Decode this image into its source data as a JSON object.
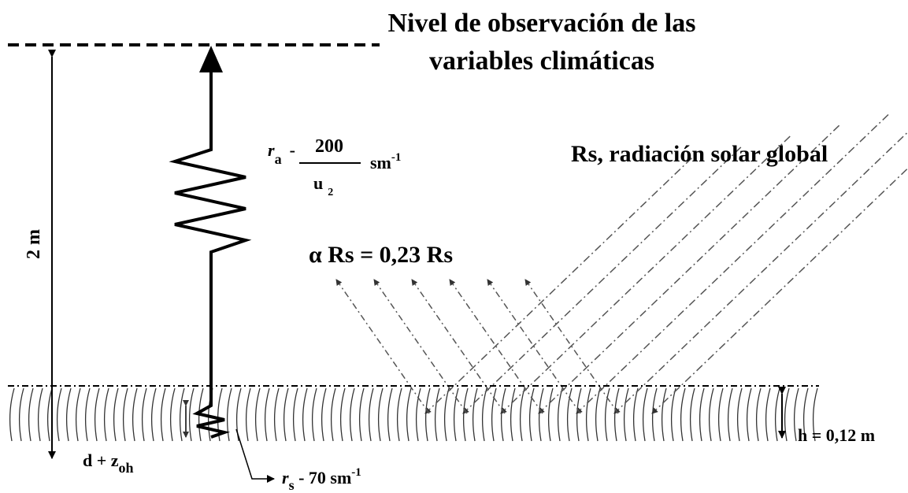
{
  "title": {
    "lines": [
      "Nivel de observación de las",
      "variables climáticas"
    ]
  },
  "height_label": "2 m",
  "ra": {
    "symbol": "r",
    "sub": "a",
    "sep": "-",
    "numerator": "200",
    "denominator": "u",
    "denominator_sub": "2",
    "unit": "sm",
    "unit_sup": "-1"
  },
  "radiation_label": "Rs, radiación solar global",
  "albedo_label": "α Rs = 0,23 Rs",
  "crop_height_label": "h = 0,12 m",
  "displacement": {
    "text": "d + z",
    "sub": "oh"
  },
  "rs": {
    "symbol": "r",
    "sub": "s",
    "rest": " - 70 sm",
    "sup": "-1"
  }
}
